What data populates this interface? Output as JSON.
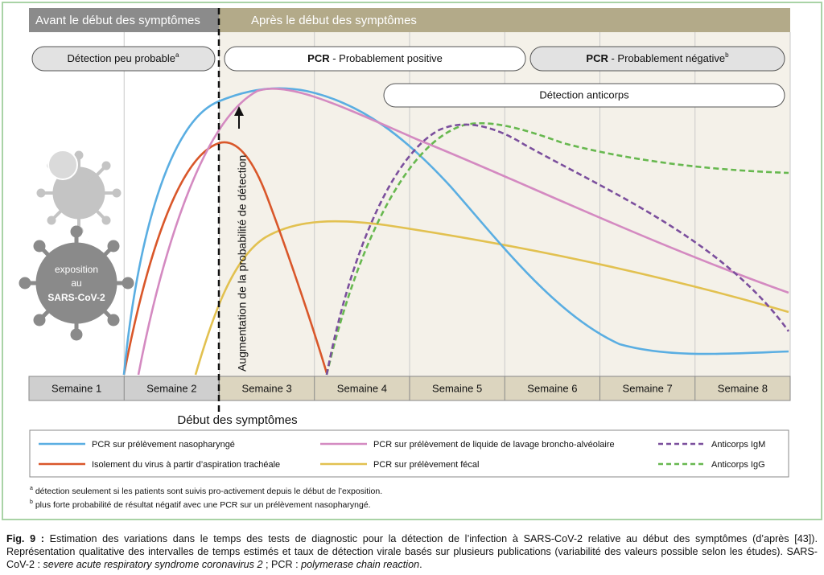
{
  "header": {
    "before": "Avant le début des symptômes",
    "after": "Après le début des symptômes"
  },
  "pills": {
    "unlikely": {
      "text": "Détection peu probable",
      "note": "a"
    },
    "positive": {
      "bold": "PCR",
      "text": " - Probablement positive"
    },
    "negative": {
      "bold": "PCR",
      "text": " - Probablement négative",
      "note": "b"
    },
    "antibodies": {
      "text": "Détection anticorps"
    }
  },
  "y_label": "Augmentation de la probabilité de détection",
  "exposure": [
    "exposition",
    "au",
    "SARS-CoV-2"
  ],
  "weeks": [
    "Semaine 1",
    "Semaine 2",
    "Semaine 3",
    "Semaine 4",
    "Semaine 5",
    "Semaine 6",
    "Semaine 7",
    "Semaine 8"
  ],
  "onset": "Début des symptômes",
  "legend": [
    {
      "name": "PCR sur prélèvement nasopharyngé",
      "color": "#5aaee2",
      "dashed": false
    },
    {
      "name": "PCR sur prélèvement de liquide de lavage broncho-alvéolaire",
      "color": "#d48ac1",
      "dashed": false
    },
    {
      "name": "Anticorps IgM",
      "color": "#7b4f9d",
      "dashed": true
    },
    {
      "name": "Isolement du virus à partir d’aspiration trachéale",
      "color": "#d9572a",
      "dashed": false
    },
    {
      "name": "PCR sur prélèvement fécal",
      "color": "#e2c150",
      "dashed": false
    },
    {
      "name": "Anticorps IgG",
      "color": "#67b84f",
      "dashed": true
    }
  ],
  "footnotes": [
    {
      "mark": "a",
      "text": " détection seulement si les patients sont suivis pro-activement depuis le début de l’exposition."
    },
    {
      "mark": "b",
      "text": " plus forte probabilité de résultat négatif avec une PCR sur un prélèvement nasopharyngé."
    }
  ],
  "caption": {
    "label": "Fig. 9 :",
    "text1": " Estimation des variations dans le temps des tests de diagnostic pour la détection de l’infection à SARS-CoV-2 relative au début des symptômes (d’après [43]). Représentation qualitative des intervalles de temps estimés et taux de détection virale basés sur plusieurs publications (variabilité des valeurs possible selon les études). SARS-CoV-2 : ",
    "italic1": "severe acute respiratory syndrome coronavirus 2",
    "text2": " ; PCR : ",
    "italic2": "polymerase chain reaction",
    "text3": "."
  }
}
